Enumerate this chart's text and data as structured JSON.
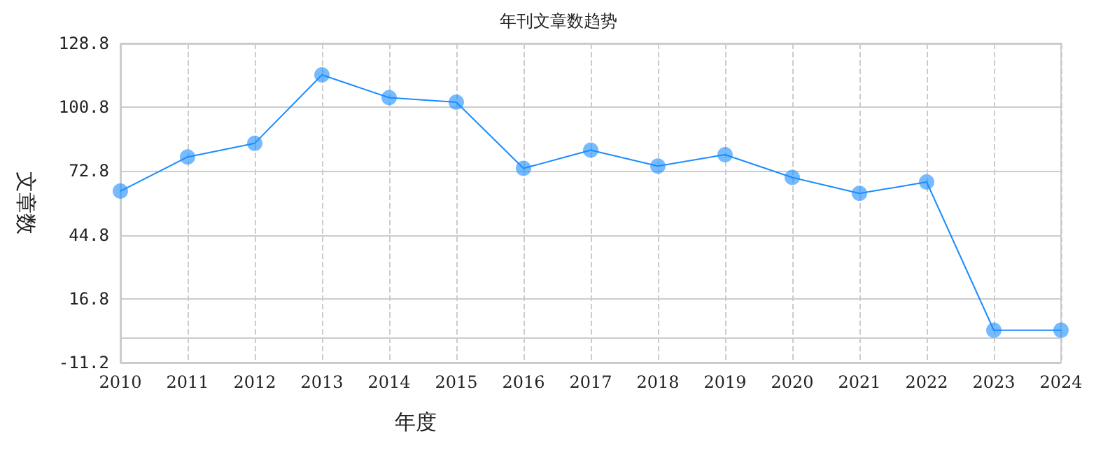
{
  "chart_data": {
    "type": "line",
    "title": "年刊文章数趋势",
    "xlabel": "年度",
    "ylabel": "文章数",
    "categories": [
      "2010",
      "2011",
      "2012",
      "2013",
      "2014",
      "2015",
      "2016",
      "2017",
      "2018",
      "2019",
      "2020",
      "2021",
      "2022",
      "2023",
      "2024"
    ],
    "series": [
      {
        "color": "#1a8cff",
        "values": [
          64,
          79,
          85,
          115,
          105,
          103,
          74,
          82,
          75,
          80,
          70,
          63,
          68,
          3,
          3
        ]
      }
    ],
    "ylim": [
      -11.2,
      128.8
    ],
    "yticks": [
      -11.2,
      16.8,
      44.8,
      72.8,
      100.8,
      128.8
    ],
    "grid": true,
    "marker": "circle",
    "line_style": "solid"
  }
}
